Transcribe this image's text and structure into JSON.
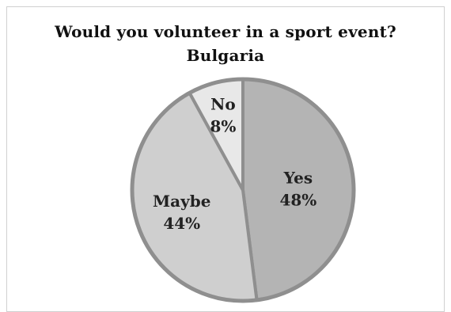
{
  "chart_data": {
    "type": "pie",
    "title": "Would you volunteer in a sport event?",
    "subtitle": "Bulgaria",
    "categories": [
      "Yes",
      "Maybe",
      "No"
    ],
    "values": [
      48,
      44,
      8
    ],
    "value_labels": [
      "48%",
      "44%",
      "8%"
    ],
    "colors": [
      "#b4b4b4",
      "#cfcfcf",
      "#e8e8e8"
    ],
    "border_color": "#8f8f8f",
    "legend": "none"
  }
}
